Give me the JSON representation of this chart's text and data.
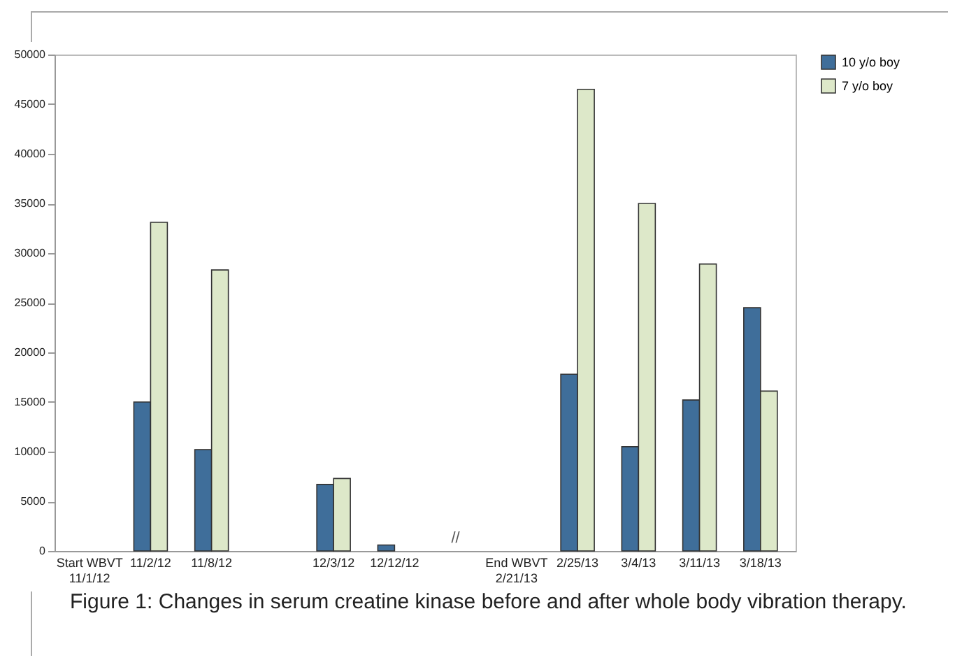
{
  "chart_data": {
    "type": "bar",
    "title": "Figure 1: Changes in serum creatine kinase before and after whole body vibration therapy.",
    "categories": [
      "Start WBVT\n11/1/12",
      "11/2/12",
      "11/8/12",
      null,
      "12/3/12",
      "12/12/12",
      null,
      "End WBVT\n2/21/13",
      "2/25/13",
      "3/4/13",
      "3/11/13",
      "3/18/13"
    ],
    "series": [
      {
        "name": "10 y/o boy",
        "color": "#3f6e9a",
        "values": [
          null,
          15000,
          10200,
          null,
          6700,
          600,
          null,
          null,
          17800,
          10500,
          15200,
          24500
        ]
      },
      {
        "name": "7 y/o boy",
        "color": "#dde8c9",
        "values": [
          null,
          33100,
          28300,
          null,
          7300,
          null,
          null,
          null,
          46500,
          35000,
          28900,
          16100
        ]
      }
    ],
    "ylim": [
      0,
      50000
    ],
    "yticks": [
      0,
      5000,
      10000,
      15000,
      20000,
      25000,
      30000,
      35000,
      40000,
      45000,
      50000
    ],
    "annotations": [
      "//"
    ],
    "grid": false,
    "legend": "right"
  }
}
